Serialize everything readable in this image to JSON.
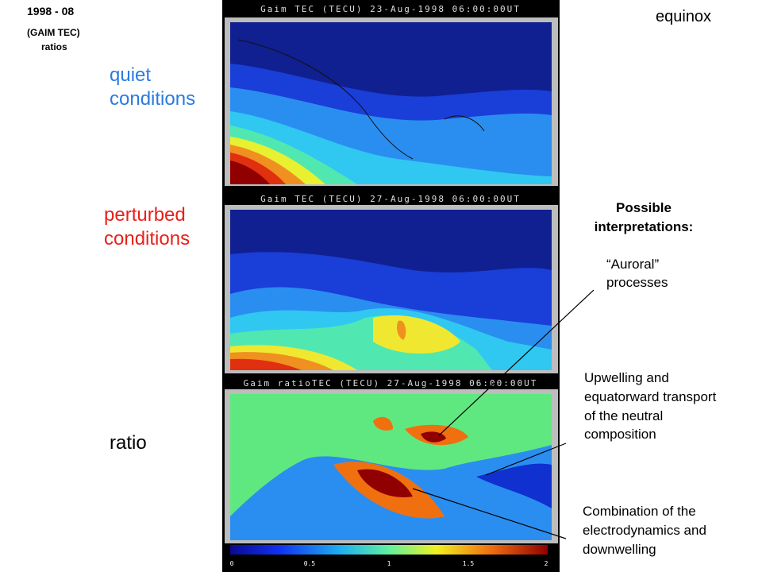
{
  "header": {
    "period": "1998 - 08",
    "source": "(GAIM TEC)",
    "kind": "ratios",
    "season": "equinox"
  },
  "rows": [
    {
      "label": "quiet conditions",
      "panel_title": "Gaim TEC (TECU) 23-Aug-1998 06:00:00UT"
    },
    {
      "label": "perturbed conditions",
      "panel_title": "Gaim TEC (TECU) 27-Aug-1998 06:00:00UT"
    },
    {
      "label": "ratio",
      "panel_title": "Gaim ratioTEC (TECU) 27-Aug-1998 06:00:00UT"
    }
  ],
  "colorbar": {
    "labels": [
      0,
      0.5,
      1,
      1.5,
      2
    ]
  },
  "interpretations": {
    "title": "Possible interpretations:",
    "items": [
      "“Auroral” processes",
      "Upwelling and equatorward transport of the neutral composition",
      "Combination of the electrodynamics and downwelling"
    ]
  }
}
